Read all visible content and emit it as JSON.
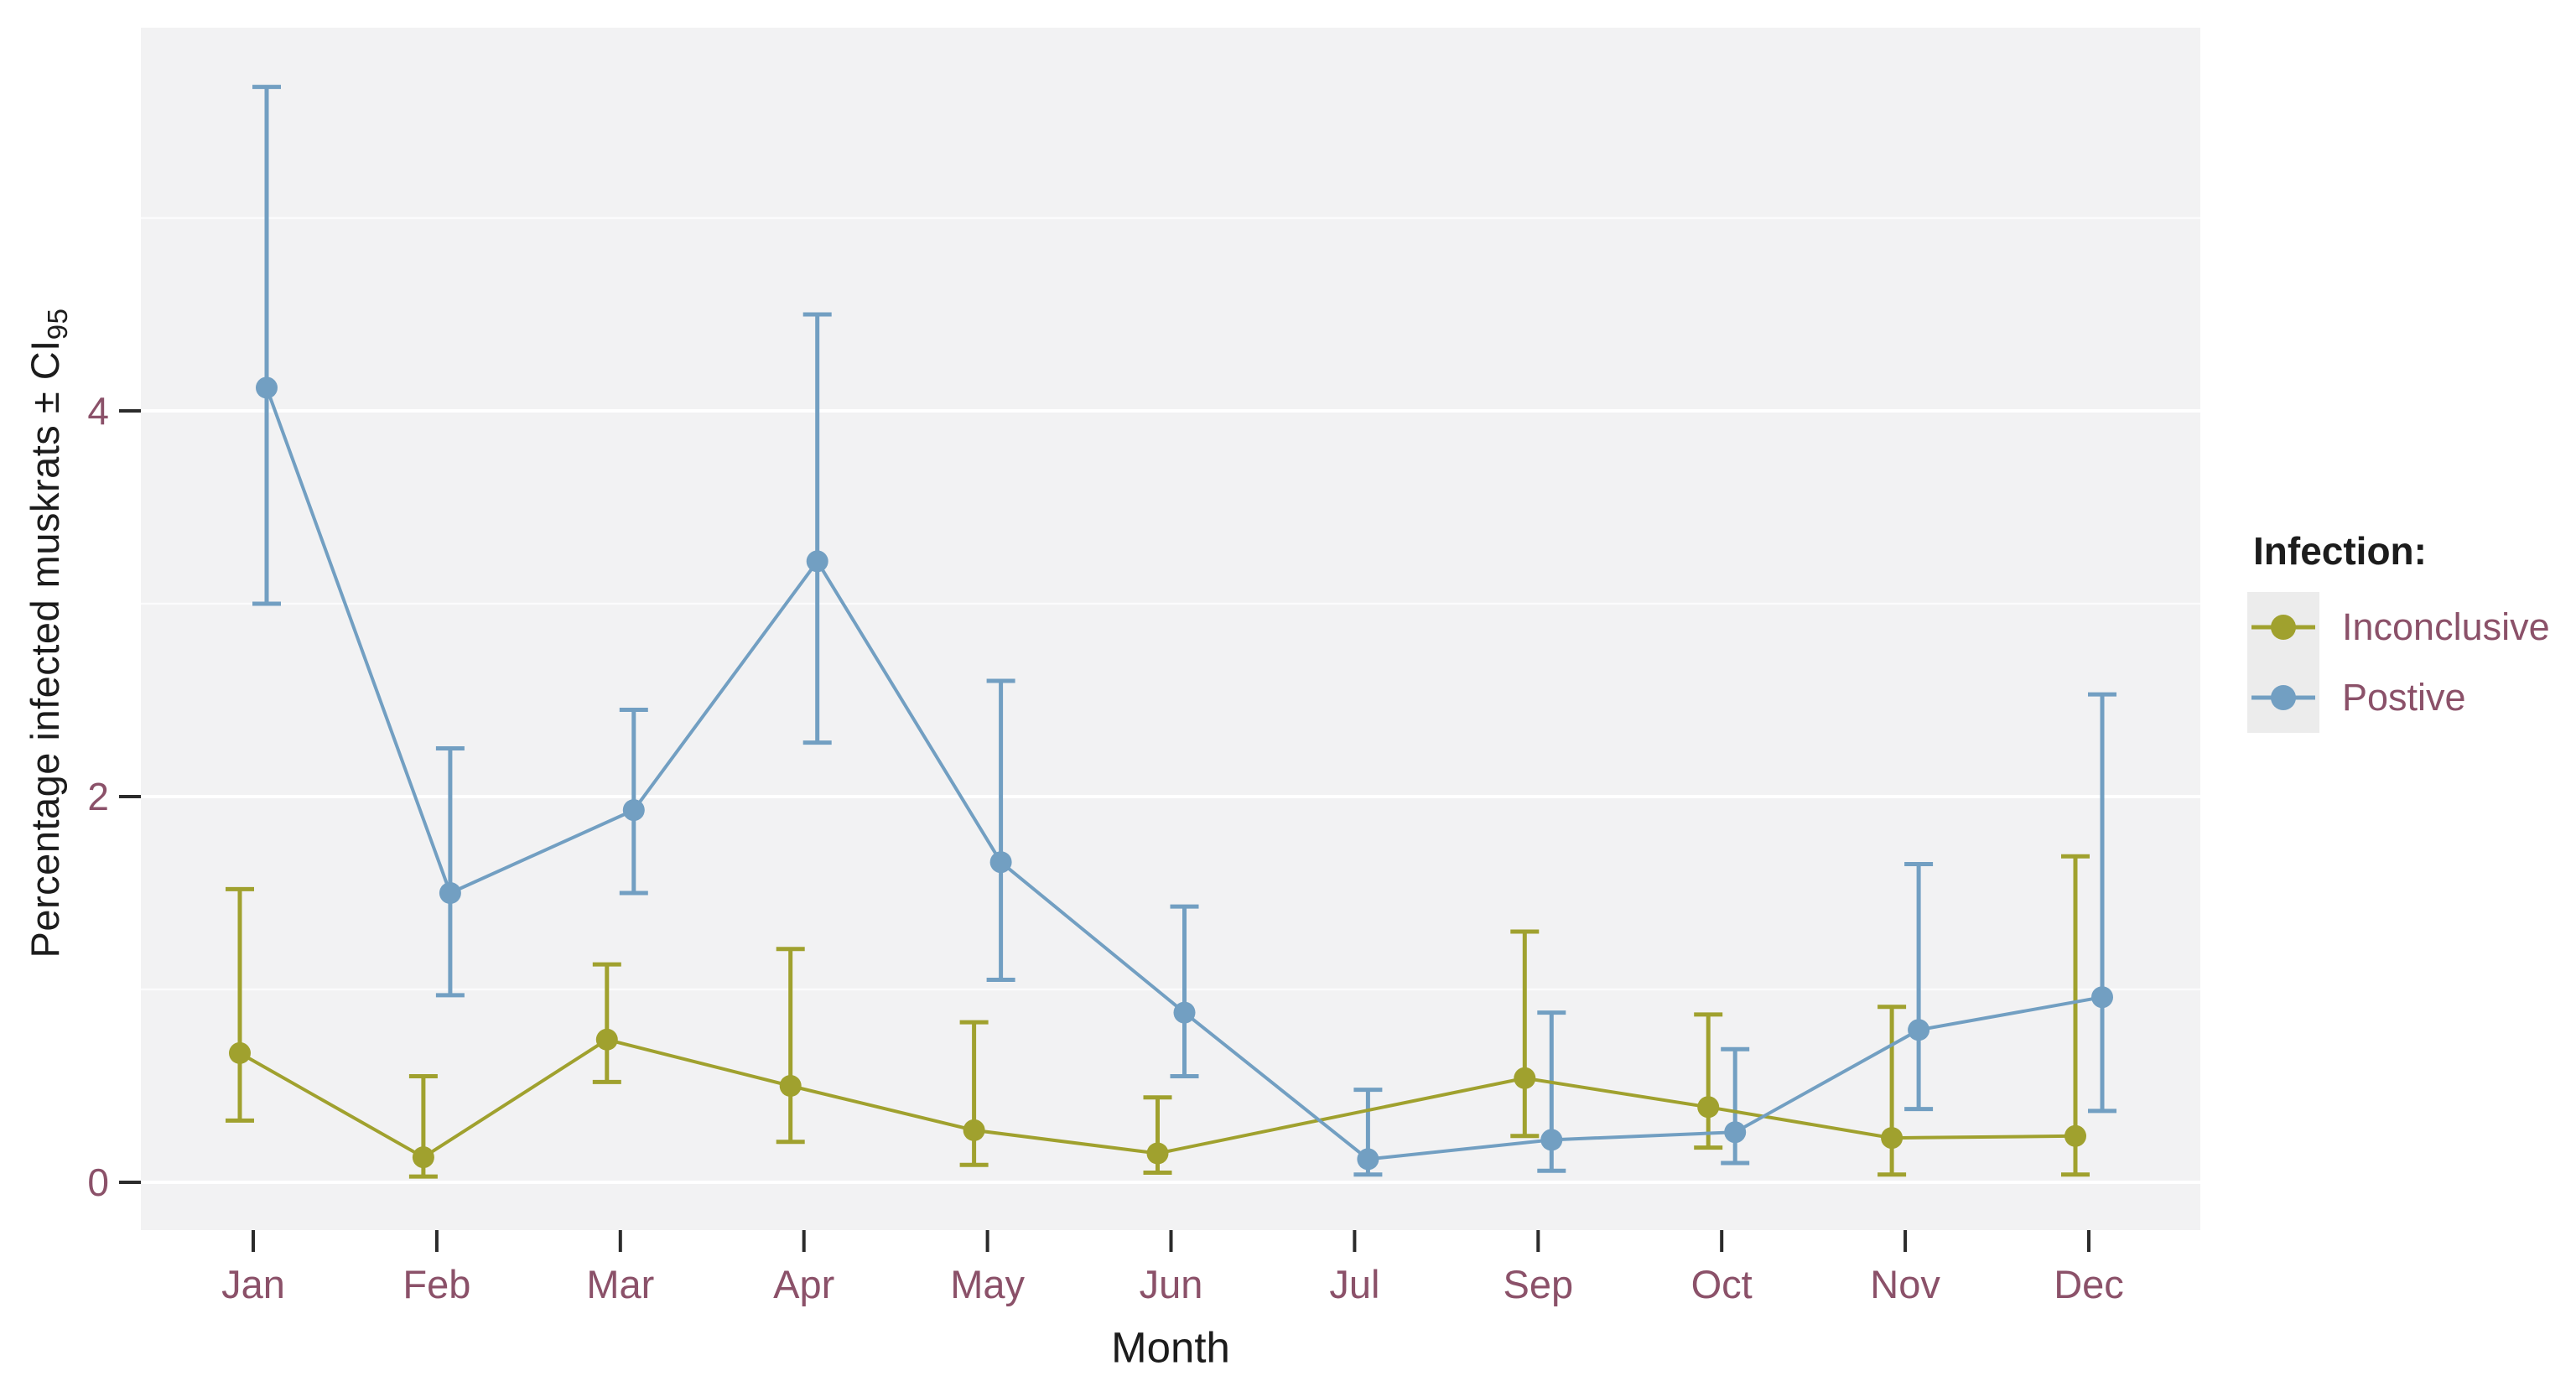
{
  "chart_data": {
    "type": "line",
    "title": "",
    "xlabel": "Month",
    "ylabel_main": "Percentage infected muskrats ± CI",
    "ylabel_sub": "95",
    "categories": [
      "Jan",
      "Feb",
      "Mar",
      "Apr",
      "May",
      "Jun",
      "Jul",
      "Sep",
      "Oct",
      "Nov",
      "Dec"
    ],
    "y_axis": {
      "ticks": [
        0,
        2,
        4
      ],
      "minor_ticks": [
        1,
        3,
        5
      ],
      "range": [
        -0.25,
        6.0
      ]
    },
    "legend": {
      "title": "Infection:",
      "position": "right"
    },
    "series": [
      {
        "name": "Inconclusive",
        "color": "#a0a12e",
        "values": [
          0.67,
          0.13,
          0.74,
          0.5,
          0.27,
          0.15,
          null,
          0.54,
          0.39,
          0.23,
          0.24
        ],
        "ci_low": [
          0.32,
          0.03,
          0.52,
          0.21,
          0.09,
          0.05,
          null,
          0.24,
          0.18,
          0.04,
          0.04
        ],
        "ci_high": [
          1.52,
          0.55,
          1.13,
          1.21,
          0.83,
          0.44,
          null,
          1.3,
          0.87,
          0.91,
          1.69
        ]
      },
      {
        "name": "Postive",
        "color": "#729fc2",
        "values": [
          4.12,
          1.5,
          1.93,
          3.22,
          1.66,
          0.88,
          0.12,
          0.22,
          0.26,
          0.79,
          0.96
        ],
        "ci_low": [
          3.0,
          0.97,
          1.5,
          2.28,
          1.05,
          0.55,
          0.04,
          0.06,
          0.1,
          0.38,
          0.37
        ],
        "ci_high": [
          5.68,
          2.25,
          2.45,
          4.5,
          2.6,
          1.43,
          0.48,
          0.88,
          0.69,
          1.65,
          2.53
        ]
      }
    ],
    "styles": {
      "panel_bg": "#f2f2f3",
      "grid_color": "#ffffff",
      "tick_color": "#2b2b2b",
      "tick_label_color": "#8b5169",
      "axis_title_color": "#1c1c1c",
      "legend_key_bg": "#ececec"
    }
  }
}
